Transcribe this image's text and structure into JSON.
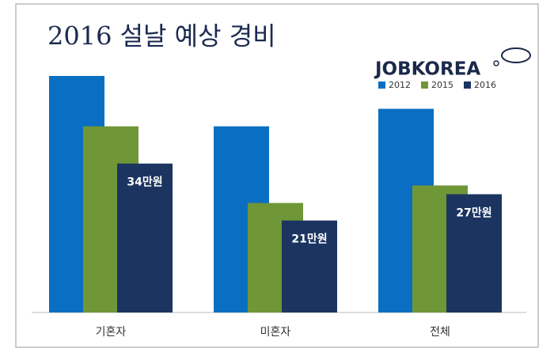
{
  "chart_data": {
    "type": "bar",
    "title": "2016 설날 예상 경비",
    "brand": "JOBKOREA",
    "categories": [
      "기혼자",
      "미혼자",
      "전체"
    ],
    "series": [
      {
        "name": "2012",
        "color": "#0a6fc2",
        "values": [
          54,
          42.5,
          46.5
        ]
      },
      {
        "name": "2015",
        "color": "#6f9637",
        "values": [
          42.5,
          25,
          29
        ]
      },
      {
        "name": "2016",
        "color": "#1b3560",
        "values": [
          34,
          21,
          27
        ],
        "value_labels": [
          "34만원",
          "21만원",
          "27만원"
        ]
      }
    ]
  }
}
